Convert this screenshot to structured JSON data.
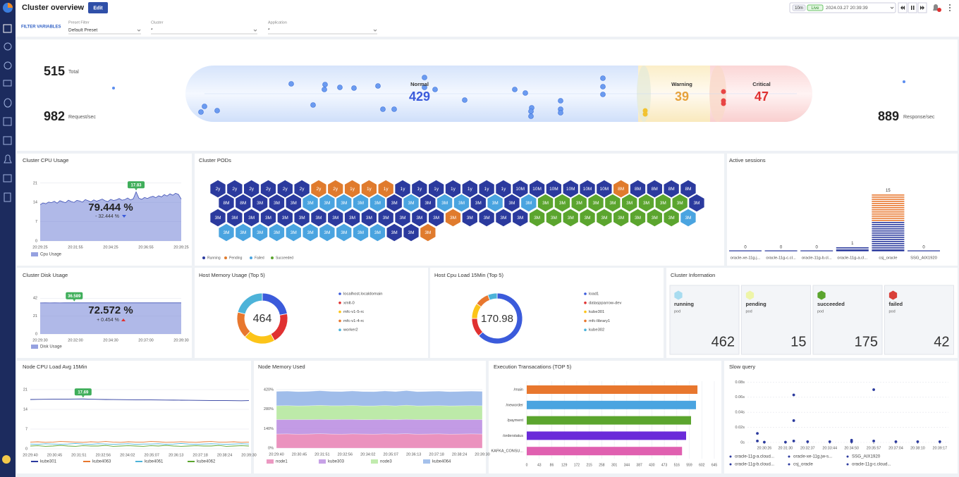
{
  "header": {
    "title": "Cluster overview",
    "edit": "Edit",
    "range": "10m",
    "live": "Live",
    "time": "2024.03.27 20:39:39"
  },
  "filters": {
    "label": "FILTER VARIABLES",
    "items": [
      {
        "label": "Preset Filter",
        "value": "Default Preset"
      },
      {
        "label": "Cluster",
        "value": "*"
      },
      {
        "label": "Application",
        "value": "*"
      }
    ]
  },
  "overview": {
    "total": 515,
    "total_label": "Total",
    "request": 982,
    "request_label": "Request/sec",
    "response": 889,
    "response_label": "Response/sec",
    "normal": {
      "label": "Normal",
      "value": 429,
      "color": "#3b5bdb"
    },
    "warning": {
      "label": "Warning",
      "value": 39,
      "color": "#e6a23c"
    },
    "critical": {
      "label": "Critical",
      "value": 47,
      "color": "#e03131"
    }
  },
  "cpu": {
    "title": "Cluster CPU Usage",
    "type": "area",
    "ylim": [
      0,
      23
    ],
    "yticks": [
      0,
      7,
      14,
      21
    ],
    "x_labels": [
      "20:29:25",
      "20:31:55",
      "20:34:25",
      "20:36:55",
      "20:39:25"
    ],
    "value": "79.444 %",
    "change": "- 32.444 %",
    "series": [
      {
        "name": "Cpu Usage",
        "color": "#7b8ad8",
        "values": [
          13.2,
          13.8,
          13.5,
          14.1,
          13.9,
          14.4,
          13.7,
          14.6,
          14.2,
          13.9,
          14.8,
          14.3,
          14.0,
          14.7,
          14.5,
          14.1,
          15.0,
          14.6,
          14.2,
          14.9,
          14.4,
          14.8,
          15.2,
          14.6,
          14.3,
          15.1,
          14.7,
          14.9,
          15.4,
          14.8,
          15.0,
          15.6,
          14.9,
          15.3,
          17.83,
          15.5,
          15.1,
          15.8,
          15.4,
          15.9,
          16.2,
          15.7,
          16.4,
          16.0,
          16.8,
          16.3,
          17.1,
          16.6,
          17.3,
          16.9,
          15.2
        ]
      }
    ]
  },
  "pods": {
    "title": "Cluster PODs",
    "rows": [
      {
        "labels": [
          "2y",
          "2y",
          "2y",
          "2y",
          "2y",
          "2y",
          "2y",
          "2y",
          "1y",
          "1y",
          "1y",
          "1y",
          "1y",
          "1y",
          "1y",
          "1y",
          "1y",
          "1y",
          "10M",
          "10M",
          "10M",
          "10M",
          "10M",
          "10M",
          "8M",
          "8M",
          "8M",
          "8M",
          "8M"
        ],
        "colors": [
          "#2b3a9e",
          "#2b3a9e",
          "#2b3a9e",
          "#2b3a9e",
          "#2b3a9e",
          "#2b3a9e",
          "#e07b2d",
          "#e07b2d",
          "#e07b2d",
          "#e07b2d",
          "#e07b2d",
          "#2b3a9e",
          "#2b3a9e",
          "#2b3a9e",
          "#2b3a9e",
          "#2b3a9e",
          "#2b3a9e",
          "#2b3a9e",
          "#2b3a9e",
          "#2b3a9e",
          "#2b3a9e",
          "#2b3a9e",
          "#2b3a9e",
          "#2b3a9e",
          "#e07b2d",
          "#2b3a9e",
          "#2b3a9e",
          "#2b3a9e",
          "#2b3a9e"
        ]
      },
      {
        "labels": [
          "8M",
          "8M",
          "3M",
          "3M",
          "3M",
          "3M",
          "3M",
          "3M",
          "3M",
          "3M",
          "3M",
          "3M",
          "3M",
          "3M",
          "3M",
          "3M",
          "3M",
          "3M",
          "3M",
          "3M",
          "3M",
          "3M",
          "3M",
          "3M",
          "3M",
          "3M",
          "3M",
          "3M",
          "3M"
        ],
        "colors": [
          "#2b3a9e",
          "#2b3a9e",
          "#2b3a9e",
          "#2b3a9e",
          "#2b3a9e",
          "#4aa4e0",
          "#4aa4e0",
          "#4aa4e0",
          "#4aa4e0",
          "#4aa4e0",
          "#2b3a9e",
          "#4aa4e0",
          "#2b3a9e",
          "#4aa4e0",
          "#4aa4e0",
          "#2b3a9e",
          "#4aa4e0",
          "#2b3a9e",
          "#4aa4e0",
          "#5ba52e",
          "#5ba52e",
          "#5ba52e",
          "#5ba52e",
          "#5ba52e",
          "#5ba52e",
          "#5ba52e",
          "#5ba52e",
          "#5ba52e",
          "#2b3a9e"
        ]
      },
      {
        "labels": [
          "3M",
          "3M",
          "3M",
          "3M",
          "3M",
          "3M",
          "3M",
          "3M",
          "3M",
          "3M",
          "3M",
          "3M",
          "3M",
          "3M",
          "3M",
          "3M",
          "3M",
          "3M",
          "3M",
          "3M",
          "3M",
          "3M",
          "3M",
          "3M",
          "3M",
          "3M",
          "3M",
          "3M",
          "3M"
        ],
        "colors": [
          "#2b3a9e",
          "#2b3a9e",
          "#2b3a9e",
          "#2b3a9e",
          "#2b3a9e",
          "#2b3a9e",
          "#2b3a9e",
          "#2b3a9e",
          "#2b3a9e",
          "#2b3a9e",
          "#2b3a9e",
          "#2b3a9e",
          "#2b3a9e",
          "#2b3a9e",
          "#e07b2d",
          "#2b3a9e",
          "#2b3a9e",
          "#2b3a9e",
          "#2b3a9e",
          "#5ba52e",
          "#5ba52e",
          "#5ba52e",
          "#5ba52e",
          "#5ba52e",
          "#5ba52e",
          "#5ba52e",
          "#5ba52e",
          "#5ba52e",
          "#4aa4e0"
        ]
      },
      {
        "labels": [
          "3M",
          "3M",
          "3M",
          "3M",
          "3M",
          "3M",
          "3M",
          "3M",
          "3M",
          "3M",
          "3M",
          "3M",
          "3M"
        ],
        "colors": [
          "#4aa4e0",
          "#4aa4e0",
          "#4aa4e0",
          "#4aa4e0",
          "#4aa4e0",
          "#4aa4e0",
          "#4aa4e0",
          "#4aa4e0",
          "#4aa4e0",
          "#4aa4e0",
          "#2b3a9e",
          "#2b3a9e",
          "#e07b2d"
        ]
      }
    ],
    "legend": [
      {
        "name": "Running",
        "color": "#2b3a9e"
      },
      {
        "name": "Pending",
        "color": "#e07b2d"
      },
      {
        "name": "Failed",
        "color": "#4aa4e0"
      },
      {
        "name": "Succeeded",
        "color": "#5ba52e"
      }
    ]
  },
  "sessions": {
    "title": "Active sessions",
    "type": "bar",
    "ylim": [
      0,
      16
    ],
    "categories": [
      "oracle-xe-11g.j...",
      "oracle-11g-c.cl...",
      "oracle-11g-b.cl...",
      "oracle-11g-a.cl...",
      "csj_oracle",
      "SSG_AIX1920"
    ],
    "values": [
      0,
      0,
      0,
      1,
      15,
      0
    ],
    "color": "#2b3a9e",
    "accent": "#e8772e"
  },
  "disk": {
    "title": "Cluster Disk Usage",
    "type": "area",
    "ylim": [
      0,
      48
    ],
    "yticks": [
      0,
      21,
      42
    ],
    "x_labels": [
      "20:29:30",
      "20:32:00",
      "20:34:30",
      "20:37:00",
      "20:39:30"
    ],
    "value": "72.572 %",
    "change": "+ 0.454 %",
    "series": [
      {
        "name": "Disk Usage",
        "color": "#7b8ad8",
        "values": [
          36.52,
          36.55,
          36.5,
          36.56,
          36.54,
          36.57,
          36.55,
          36.589,
          36.56,
          36.55,
          36.57,
          36.56,
          36.55,
          36.57,
          36.56,
          36.55,
          36.57,
          36.56,
          36.58,
          36.57,
          36.56,
          36.57,
          36.58,
          36.57,
          36.56,
          36.58,
          36.57,
          36.58,
          36.57,
          36.58
        ]
      }
    ]
  },
  "host_mem": {
    "title": "Host Memory Usage (Top 5)",
    "type": "donut",
    "total": 464,
    "categories": [
      "localhost.localdomain",
      "xmlt-0",
      "mfc-v1-5-rc",
      "mfc-v1-4-rc",
      "worker2"
    ],
    "values": [
      22,
      20,
      20,
      17,
      21
    ],
    "colors": [
      "#3b5bdb",
      "#e03131",
      "#fcc419",
      "#e8772e",
      "#4db3d9"
    ]
  },
  "host_cpu": {
    "title": "Host Cpu Load 15Min (Top 5)",
    "type": "donut",
    "total": 170.98,
    "categories": [
      "load1",
      "dataspparrow-dev",
      "kube301",
      "mfc-library1",
      "kube302"
    ],
    "values": [
      63,
      12,
      10,
      9,
      6
    ],
    "colors": [
      "#3b5bdb",
      "#e03131",
      "#fcc419",
      "#e8772e",
      "#4db3d9"
    ]
  },
  "cluster_info": {
    "title": "Cluster Information",
    "cards": [
      {
        "label": "running",
        "unit": "pod",
        "value": 462,
        "color": "#a8dcf0"
      },
      {
        "label": "pending",
        "unit": "pod",
        "value": 15,
        "color": "#eef5a8"
      },
      {
        "label": "succeeded",
        "unit": "pod",
        "value": 175,
        "color": "#5ba52e"
      },
      {
        "label": "failed",
        "unit": "pod",
        "value": 42,
        "color": "#d9403a"
      }
    ]
  },
  "node_cpu": {
    "title": "Node CPU Load Avg 15Min",
    "type": "line",
    "ylim": [
      0,
      23
    ],
    "yticks": [
      0,
      7,
      14,
      21
    ],
    "x_labels": [
      "20:29:40",
      "20:30:45",
      "20:31:51",
      "20:32:56",
      "20:34:02",
      "20:35:07",
      "20:36:13",
      "20:37:18",
      "20:38:24",
      "20:39:30"
    ],
    "series": [
      {
        "name": "kube301",
        "color": "#2b3a9e",
        "values": [
          17.5,
          17.55,
          17.58,
          17.6,
          17.62,
          17.64,
          17.66,
          17.69,
          17.6,
          17.55,
          17.5,
          17.48,
          17.45,
          17.42,
          17.4,
          17.38,
          17.35,
          17.33,
          17.3,
          17.28,
          17.25,
          17.23,
          17.2,
          17.18,
          17.15,
          17.12,
          17.1,
          17.08,
          17.05,
          17.1
        ]
      },
      {
        "name": "kube4063",
        "color": "#e8772e",
        "values": [
          2.4,
          2.5,
          2.3,
          2.4,
          2.6,
          2.5,
          2.4,
          2.3,
          2.5,
          2.4,
          2.6,
          2.4,
          2.3,
          2.5,
          2.4,
          2.4,
          2.6,
          2.5,
          2.3,
          2.4,
          2.5,
          2.4,
          2.3,
          2.5,
          2.6,
          2.4,
          2.4,
          2.5,
          2.3,
          2.4
        ]
      },
      {
        "name": "kube4061",
        "color": "#4db3d9",
        "values": [
          1.7,
          1.6,
          1.8,
          1.7,
          1.6,
          1.7,
          1.9,
          1.7,
          1.6,
          1.8,
          1.7,
          1.6,
          1.7,
          1.8,
          1.6,
          1.7,
          1.7,
          1.8,
          1.6,
          1.7,
          1.9,
          1.7,
          1.6,
          1.7,
          1.8,
          1.7,
          1.6,
          1.7,
          1.8,
          1.7
        ]
      },
      {
        "name": "kube4062",
        "color": "#5ba52e",
        "values": [
          1.0,
          1.1,
          0.9,
          1.0,
          1.2,
          1.0,
          0.9,
          1.1,
          1.0,
          1.0,
          1.2,
          0.9,
          1.0,
          1.1,
          1.0,
          0.9,
          1.1,
          1.0,
          1.2,
          1.0,
          0.9,
          1.0,
          1.1,
          1.0,
          1.0,
          1.2,
          0.9,
          1.0,
          1.1,
          1.0
        ]
      }
    ]
  },
  "node_mem": {
    "title": "Node Memory Used",
    "type": "stacked-area",
    "ylim": [
      0,
      440
    ],
    "yticks": [
      {
        "value": 0,
        "label": "0%"
      },
      {
        "value": 140,
        "label": "140%"
      },
      {
        "value": 280,
        "label": "280%"
      },
      {
        "value": 420,
        "label": "420%"
      }
    ],
    "x_labels": [
      "20:29:40",
      "20:30:45",
      "20:31:51",
      "20:32:56",
      "20:34:02",
      "20:35:07",
      "20:36:13",
      "20:37:18",
      "20:38:24",
      "20:39:30"
    ],
    "series": [
      {
        "name": "node1",
        "color": "#e77fb3",
        "values": [
          101,
          102,
          100,
          101,
          103,
          101,
          100,
          102,
          101,
          100,
          102,
          101,
          103,
          100,
          101,
          102,
          100,
          101,
          102,
          101
        ]
      },
      {
        "name": "kube303",
        "color": "#b98ae0",
        "values": [
          104,
          103,
          105,
          104,
          103,
          104,
          106,
          104,
          103,
          105,
          104,
          103,
          104,
          105,
          104,
          103,
          105,
          104,
          103,
          104
        ]
      },
      {
        "name": "node3",
        "color": "#b2e69a",
        "values": [
          99,
          100,
          98,
          99,
          101,
          99,
          98,
          100,
          99,
          98,
          100,
          99,
          101,
          98,
          99,
          100,
          98,
          99,
          100,
          99
        ]
      },
      {
        "name": "kube4064",
        "color": "#8fb2e6",
        "values": [
          103,
          104,
          102,
          103,
          105,
          103,
          102,
          104,
          103,
          102,
          104,
          103,
          105,
          102,
          103,
          104,
          102,
          103,
          104,
          103
        ]
      }
    ]
  },
  "exec": {
    "title": "Execution Transacations (TOP 5)",
    "type": "hbar",
    "xlim": [
      0,
      645
    ],
    "xticks": [
      0,
      43,
      86,
      129,
      172,
      215,
      258,
      301,
      344,
      387,
      430,
      473,
      516,
      559,
      602,
      645
    ],
    "categories": [
      "/main",
      "/neworder",
      "/payment",
      "/orderstatus",
      "KAFKA_CONSU..."
    ],
    "values": [
      587,
      582,
      565,
      548,
      534
    ],
    "colors": [
      "#e8772e",
      "#4aa4e0",
      "#5ba52e",
      "#6a2bd9",
      "#e060b0"
    ]
  },
  "slow": {
    "title": "Slow query",
    "type": "scatter",
    "color": "#2b3a9e",
    "xlim": [
      "20:29:35",
      "20:39:43"
    ],
    "ylim": [
      0,
      0.085
    ],
    "xticks": [
      "20:30:26",
      "20:31:30",
      "20:32:37",
      "20:33:44",
      "20:34:50",
      "20:35:57",
      "20:37:04",
      "20:38:10",
      "20:39:17"
    ],
    "yticks": [
      {
        "value": 0,
        "label": "0s"
      },
      {
        "value": 0.02,
        "label": "0.02s"
      },
      {
        "value": 0.04,
        "label": "0.04s"
      },
      {
        "value": 0.06,
        "label": "0.06s"
      },
      {
        "value": 0.08,
        "label": "0.08s"
      }
    ],
    "x": [
      "20:30:05",
      "20:30:05",
      "20:30:26",
      "20:31:30",
      "20:31:55",
      "20:31:55",
      "20:31:55",
      "20:32:37",
      "20:33:44",
      "20:34:50",
      "20:34:50",
      "20:35:57",
      "20:35:57",
      "20:37:04",
      "20:38:10",
      "20:39:17"
    ],
    "values": [
      0.012,
      0.002,
      0.0005,
      0.0005,
      0.063,
      0.029,
      0.002,
      0.001,
      0.001,
      0.003,
      0.001,
      0.07,
      0.002,
      0.001,
      0.001,
      0.001
    ],
    "legend": [
      "oracle-11g-a.cloud...",
      "oracle-xe-11g.jw-s...",
      "SSG_AIX1920",
      "oracle-11g-b.cloud...",
      "csj_oracle",
      "oracle-11g-c.cloud..."
    ]
  }
}
